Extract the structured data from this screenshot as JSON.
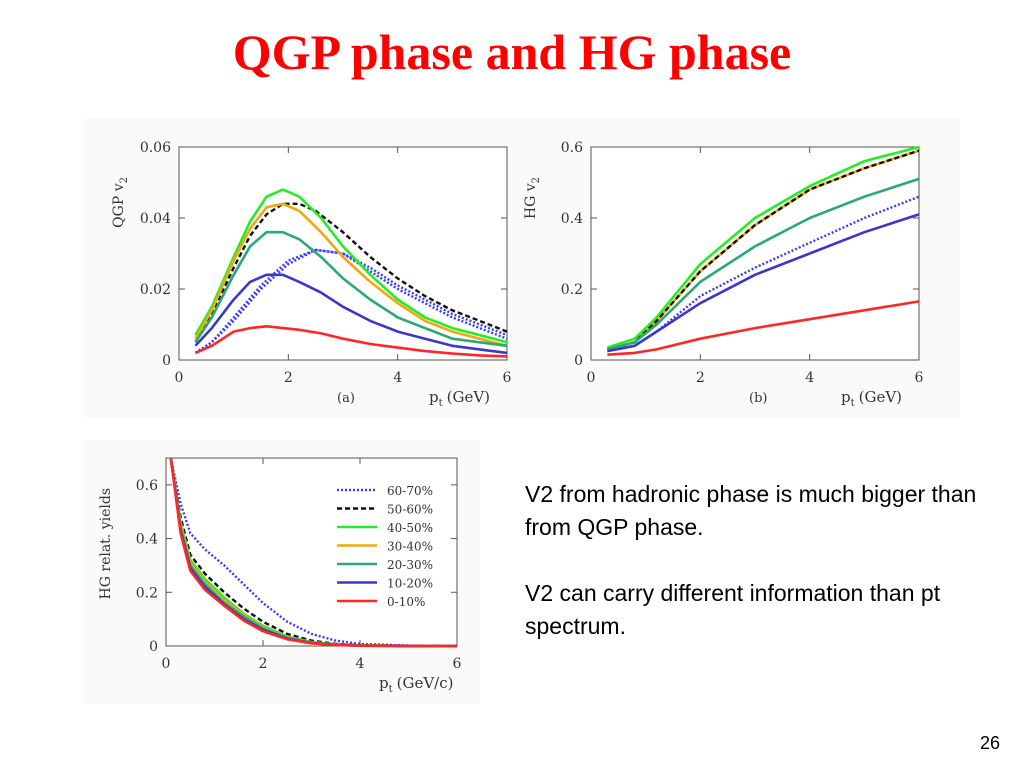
{
  "slide": {
    "title": "QGP phase and HG phase",
    "notes": [
      "V2 from hadronic phase is much bigger than from QGP phase.",
      "V2 can carry different information than pt spectrum."
    ],
    "page_number": "26"
  },
  "series_styles": [
    {
      "name": "60-70%",
      "color": "#3a3aff",
      "dash": "dotted"
    },
    {
      "name": "50-60%",
      "color": "#111111",
      "dash": "dashed"
    },
    {
      "name": "40-50%",
      "color": "#22ee22",
      "dash": "solid"
    },
    {
      "name": "30-40%",
      "color": "#f0a810",
      "dash": "solid"
    },
    {
      "name": "20-30%",
      "color": "#2aa878",
      "dash": "solid"
    },
    {
      "name": "10-20%",
      "color": "#3a38c8",
      "dash": "solid"
    },
    {
      "name": "0-10%",
      "color": "#ff2828",
      "dash": "solid"
    }
  ],
  "chart_data": [
    {
      "type": "line",
      "panel_label": "(a)",
      "ylabel": "QGP v",
      "ylabel_sub": "2",
      "xlabel": "p",
      "xlabel_sub": "t",
      "xlabel_unit": "(GeV)",
      "xlim": [
        0,
        6
      ],
      "ylim": [
        0,
        0.06
      ],
      "xticks": [
        0,
        2,
        4,
        6
      ],
      "xtick_labels": [
        "0",
        "2",
        "4",
        "6"
      ],
      "yticks": [
        0,
        0.02,
        0.04,
        0.06
      ],
      "ytick_labels": [
        "0",
        "0.02",
        "0.04",
        "0.06"
      ],
      "grid": false,
      "series": [
        {
          "style": 1,
          "x": [
            0.3,
            0.6,
            1.0,
            1.3,
            1.6,
            1.9,
            2.2,
            2.5,
            3.0,
            3.5,
            4.0,
            4.5,
            5.0,
            5.5,
            6.0
          ],
          "y": [
            0.005,
            0.013,
            0.026,
            0.035,
            0.041,
            0.044,
            0.044,
            0.042,
            0.036,
            0.029,
            0.023,
            0.018,
            0.014,
            0.011,
            0.008
          ]
        },
        {
          "style": 0,
          "x": [
            0.3,
            0.6,
            1.0,
            1.5,
            2.0,
            2.5,
            3.0,
            3.5,
            4.0,
            4.5,
            5.0,
            5.5,
            6.0
          ],
          "y": [
            0.002,
            0.005,
            0.012,
            0.021,
            0.028,
            0.031,
            0.03,
            0.026,
            0.021,
            0.017,
            0.013,
            0.01,
            0.007
          ]
        },
        {
          "style": 0,
          "x": [
            0.3,
            0.6,
            1.0,
            1.5,
            2.0,
            2.5,
            3.0,
            3.5,
            4.0,
            4.5,
            5.0,
            5.5,
            6.0
          ],
          "y": [
            0.002,
            0.005,
            0.011,
            0.02,
            0.027,
            0.031,
            0.03,
            0.025,
            0.02,
            0.016,
            0.012,
            0.009,
            0.006
          ]
        },
        {
          "style": 2,
          "x": [
            0.3,
            0.6,
            1.0,
            1.3,
            1.6,
            1.9,
            2.2,
            2.6,
            3.0,
            3.5,
            4.0,
            4.5,
            5.0,
            5.5,
            6.0
          ],
          "y": [
            0.007,
            0.015,
            0.029,
            0.039,
            0.046,
            0.048,
            0.046,
            0.04,
            0.032,
            0.024,
            0.017,
            0.012,
            0.009,
            0.007,
            0.005
          ]
        },
        {
          "style": 3,
          "x": [
            0.3,
            0.6,
            1.0,
            1.3,
            1.6,
            1.9,
            2.2,
            2.6,
            3.0,
            3.5,
            4.0,
            4.5,
            5.0,
            5.5,
            6.0
          ],
          "y": [
            0.006,
            0.014,
            0.028,
            0.037,
            0.043,
            0.044,
            0.042,
            0.036,
            0.029,
            0.022,
            0.016,
            0.011,
            0.008,
            0.006,
            0.004
          ]
        },
        {
          "style": 4,
          "x": [
            0.3,
            0.6,
            1.0,
            1.3,
            1.6,
            1.9,
            2.2,
            2.6,
            3.0,
            3.5,
            4.0,
            4.5,
            5.0,
            5.5,
            6.0
          ],
          "y": [
            0.005,
            0.012,
            0.024,
            0.032,
            0.036,
            0.036,
            0.034,
            0.029,
            0.023,
            0.017,
            0.012,
            0.009,
            0.006,
            0.005,
            0.004
          ]
        },
        {
          "style": 5,
          "x": [
            0.3,
            0.6,
            1.0,
            1.3,
            1.6,
            1.9,
            2.2,
            2.6,
            3.0,
            3.5,
            4.0,
            4.5,
            5.0,
            5.5,
            6.0
          ],
          "y": [
            0.004,
            0.009,
            0.017,
            0.022,
            0.024,
            0.024,
            0.022,
            0.019,
            0.015,
            0.011,
            0.008,
            0.006,
            0.004,
            0.003,
            0.002
          ]
        },
        {
          "style": 6,
          "x": [
            0.3,
            0.6,
            1.0,
            1.3,
            1.6,
            1.9,
            2.2,
            2.6,
            3.0,
            3.5,
            4.0,
            4.5,
            5.0,
            5.5,
            6.0
          ],
          "y": [
            0.002,
            0.004,
            0.008,
            0.009,
            0.0095,
            0.009,
            0.0085,
            0.0075,
            0.006,
            0.0045,
            0.0035,
            0.0025,
            0.0018,
            0.0013,
            0.001
          ]
        }
      ]
    },
    {
      "type": "line",
      "panel_label": "(b)",
      "ylabel": "HG v",
      "ylabel_sub": "2",
      "xlabel": "p",
      "xlabel_sub": "t",
      "xlabel_unit": "(GeV)",
      "xlim": [
        0,
        6
      ],
      "ylim": [
        0,
        0.6
      ],
      "xticks": [
        0,
        2,
        4,
        6
      ],
      "xtick_labels": [
        "0",
        "2",
        "4",
        "6"
      ],
      "yticks": [
        0,
        0.2,
        0.4,
        0.6
      ],
      "ytick_labels": [
        "0",
        "0.2",
        "0.4",
        "0.6"
      ],
      "grid": false,
      "series": [
        {
          "style": 2,
          "x": [
            0.3,
            0.8,
            1.2,
            2.0,
            3.0,
            4.0,
            5.0,
            6.0
          ],
          "y": [
            0.035,
            0.06,
            0.12,
            0.27,
            0.4,
            0.49,
            0.56,
            0.6
          ]
        },
        {
          "style": 3,
          "x": [
            0.3,
            0.8,
            1.2,
            2.0,
            3.0,
            4.0,
            5.0,
            6.0
          ],
          "y": [
            0.03,
            0.05,
            0.11,
            0.25,
            0.38,
            0.48,
            0.54,
            0.59
          ]
        },
        {
          "style": 1,
          "x": [
            0.3,
            0.8,
            1.2,
            2.0,
            3.0,
            4.0,
            5.0,
            6.0
          ],
          "y": [
            0.03,
            0.05,
            0.11,
            0.25,
            0.38,
            0.48,
            0.54,
            0.59
          ]
        },
        {
          "style": 4,
          "x": [
            0.3,
            0.8,
            1.2,
            2.0,
            3.0,
            4.0,
            5.0,
            6.0
          ],
          "y": [
            0.03,
            0.05,
            0.1,
            0.22,
            0.32,
            0.4,
            0.46,
            0.51
          ]
        },
        {
          "style": 0,
          "x": [
            0.3,
            0.8,
            1.2,
            2.0,
            3.0,
            4.0,
            5.0,
            6.0
          ],
          "y": [
            0.025,
            0.04,
            0.08,
            0.18,
            0.26,
            0.33,
            0.4,
            0.46
          ]
        },
        {
          "style": 5,
          "x": [
            0.3,
            0.8,
            1.2,
            2.0,
            3.0,
            4.0,
            5.0,
            6.0
          ],
          "y": [
            0.025,
            0.04,
            0.08,
            0.16,
            0.24,
            0.3,
            0.36,
            0.41
          ]
        },
        {
          "style": 6,
          "x": [
            0.3,
            0.8,
            1.2,
            2.0,
            3.0,
            4.0,
            5.0,
            6.0
          ],
          "y": [
            0.015,
            0.02,
            0.03,
            0.06,
            0.09,
            0.115,
            0.14,
            0.165
          ]
        }
      ]
    },
    {
      "type": "line",
      "ylabel": "HG relat. yields",
      "xlabel": "p",
      "xlabel_sub": "t",
      "xlabel_unit": "(GeV/c)",
      "xlim": [
        0,
        6
      ],
      "ylim": [
        0,
        0.7
      ],
      "xticks": [
        0,
        2,
        4,
        6
      ],
      "xtick_labels": [
        "0",
        "2",
        "4",
        "6"
      ],
      "yticks": [
        0,
        0.2,
        0.4,
        0.6
      ],
      "ytick_labels": [
        "0",
        "0.2",
        "0.4",
        "0.6"
      ],
      "grid": false,
      "legend": "top-right",
      "legend_order": [
        0,
        1,
        2,
        3,
        4,
        5,
        6
      ],
      "series": [
        {
          "style": 0,
          "x": [
            0.1,
            0.3,
            0.5,
            0.8,
            1.2,
            1.6,
            2.0,
            2.5,
            3.0,
            3.5,
            4.0,
            5.0,
            6.0
          ],
          "y": [
            0.7,
            0.53,
            0.42,
            0.36,
            0.3,
            0.23,
            0.16,
            0.09,
            0.045,
            0.02,
            0.008,
            0.002,
            0.0
          ]
        },
        {
          "style": 1,
          "x": [
            0.1,
            0.3,
            0.5,
            0.8,
            1.2,
            1.6,
            2.0,
            2.5,
            3.0,
            3.5,
            4.0,
            5.0,
            6.0
          ],
          "y": [
            0.7,
            0.48,
            0.34,
            0.27,
            0.2,
            0.14,
            0.09,
            0.045,
            0.02,
            0.008,
            0.003,
            0.001,
            0.0
          ]
        },
        {
          "style": 2,
          "x": [
            0.1,
            0.3,
            0.5,
            0.8,
            1.2,
            1.6,
            2.0,
            2.5,
            3.0,
            3.5,
            4.0,
            5.0,
            6.0
          ],
          "y": [
            0.7,
            0.46,
            0.32,
            0.25,
            0.18,
            0.12,
            0.075,
            0.035,
            0.015,
            0.006,
            0.002,
            0.0,
            0.0
          ]
        },
        {
          "style": 3,
          "x": [
            0.1,
            0.3,
            0.5,
            0.8,
            1.2,
            1.6,
            2.0,
            2.5,
            3.0,
            3.5,
            4.0,
            5.0,
            6.0
          ],
          "y": [
            0.7,
            0.45,
            0.31,
            0.24,
            0.17,
            0.115,
            0.07,
            0.032,
            0.013,
            0.005,
            0.002,
            0.0,
            0.0
          ]
        },
        {
          "style": 4,
          "x": [
            0.1,
            0.3,
            0.5,
            0.8,
            1.2,
            1.6,
            2.0,
            2.5,
            3.0,
            3.5,
            4.0,
            5.0,
            6.0
          ],
          "y": [
            0.7,
            0.44,
            0.3,
            0.23,
            0.16,
            0.11,
            0.065,
            0.03,
            0.012,
            0.005,
            0.002,
            0.0,
            0.0
          ]
        },
        {
          "style": 5,
          "x": [
            0.1,
            0.3,
            0.5,
            0.8,
            1.2,
            1.6,
            2.0,
            2.5,
            3.0,
            3.5,
            4.0,
            5.0,
            6.0
          ],
          "y": [
            0.7,
            0.43,
            0.29,
            0.22,
            0.155,
            0.1,
            0.06,
            0.027,
            0.011,
            0.004,
            0.001,
            0.0,
            0.0
          ]
        },
        {
          "style": 6,
          "x": [
            0.1,
            0.3,
            0.5,
            0.8,
            1.2,
            1.6,
            2.0,
            2.5,
            3.0,
            3.5,
            4.0,
            5.0,
            6.0
          ],
          "y": [
            0.7,
            0.42,
            0.28,
            0.21,
            0.15,
            0.095,
            0.055,
            0.025,
            0.01,
            0.004,
            0.001,
            0.0,
            0.0
          ]
        }
      ]
    }
  ]
}
